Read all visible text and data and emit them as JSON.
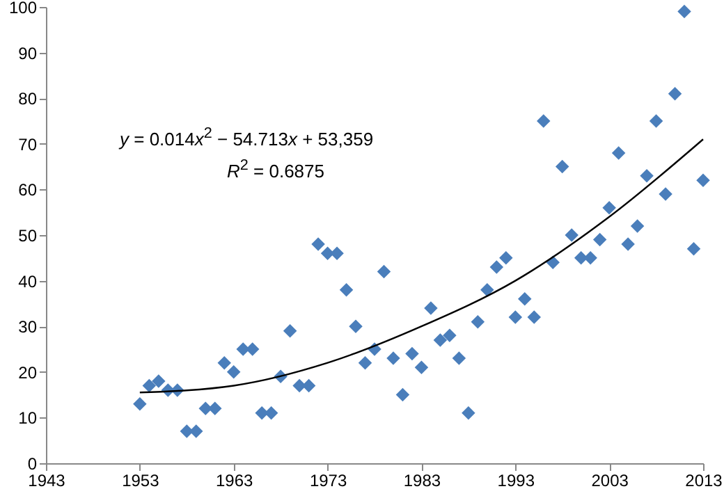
{
  "chart_data": {
    "type": "scatter",
    "grid": false,
    "xlim": [
      1943,
      2013
    ],
    "xticks": [
      1943,
      1953,
      1963,
      1973,
      1983,
      1993,
      2003,
      2013
    ],
    "ylim": [
      0,
      100
    ],
    "yticks": [
      0,
      10,
      20,
      30,
      40,
      50,
      60,
      70,
      80,
      90,
      100
    ],
    "annotations": [
      "y = 0.014x$^{2}$ − 54.713x + 53,359",
      "R$^{2}$ = 0.6875"
    ],
    "series": [
      {
        "type": "scatter",
        "marker": "diamond",
        "color": "#4a7ebb",
        "x": [
          1953,
          1954,
          1955,
          1956,
          1957,
          1958,
          1959,
          1960,
          1961,
          1962,
          1963,
          1964,
          1965,
          1966,
          1967,
          1968,
          1969,
          1970,
          1971,
          1972,
          1973,
          1974,
          1975,
          1976,
          1977,
          1978,
          1979,
          1980,
          1981,
          1982,
          1983,
          1984,
          1985,
          1986,
          1987,
          1988,
          1989,
          1990,
          1991,
          1992,
          1993,
          1994,
          1995,
          1996,
          1997,
          1998,
          1999,
          2000,
          2001,
          2002,
          2003,
          2004,
          2005,
          2006,
          2007,
          2008,
          2009,
          2010,
          2011,
          2012,
          2013
        ],
        "values": [
          13,
          17,
          18,
          16,
          16,
          7,
          7,
          12,
          12,
          22,
          20,
          25,
          25,
          11,
          11,
          19,
          29,
          17,
          17,
          48,
          46,
          46,
          38,
          30,
          22,
          25,
          42,
          23,
          15,
          24,
          21,
          34,
          27,
          28,
          23,
          11,
          31,
          38,
          43,
          45,
          32,
          36,
          32,
          75,
          44,
          65,
          50,
          45,
          45,
          49,
          56,
          68,
          48,
          52,
          63,
          75,
          59,
          81,
          99,
          47,
          62
        ]
      },
      {
        "type": "line",
        "marker": "none",
        "color": "#000000",
        "x": [
          1953,
          1963,
          1973,
          1983,
          1993,
          2003,
          2013
        ],
        "values": [
          15.5,
          17,
          22,
          30,
          40,
          54,
          71
        ]
      }
    ]
  }
}
